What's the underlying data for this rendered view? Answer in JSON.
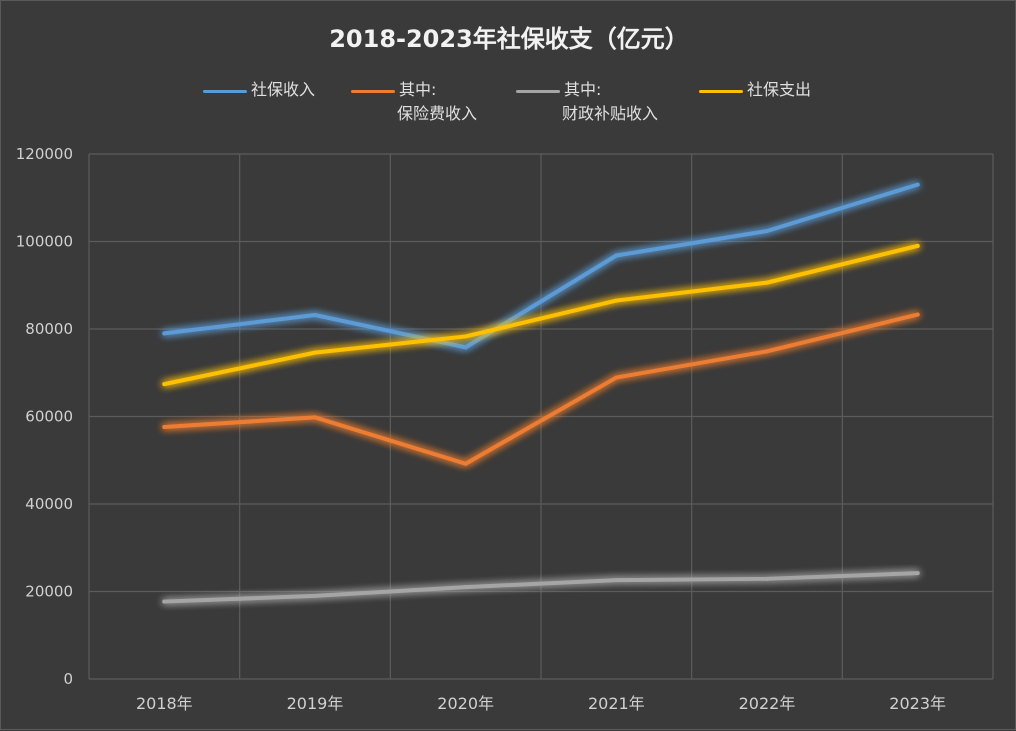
{
  "chart_data": {
    "type": "line",
    "title": "2018-2023年社保收支（亿元）",
    "categories": [
      "2018年",
      "2019年",
      "2020年",
      "2021年",
      "2022年",
      "2023年"
    ],
    "ylim": [
      0,
      120000
    ],
    "yticks": [
      "0",
      "20000",
      "40000",
      "60000",
      "80000",
      "100000",
      "120000"
    ],
    "grid": true,
    "legend_position": "top",
    "series": [
      {
        "name": "社保收入",
        "name_lines": [
          "社保收入"
        ],
        "color": "#5b9bd5",
        "values": [
          79000,
          83200,
          75800,
          96800,
          102400,
          113000
        ]
      },
      {
        "name": "其中:保险费收入",
        "name_lines": [
          "其中:",
          "保险费收入"
        ],
        "color": "#ed7d31",
        "values": [
          57600,
          59800,
          49200,
          68900,
          74900,
          83300
        ]
      },
      {
        "name": "其中:财政补贴收入",
        "name_lines": [
          "其中:",
          "财政补贴收入"
        ],
        "color": "#a5a5a5",
        "values": [
          17700,
          19000,
          21000,
          22600,
          22900,
          24200
        ]
      },
      {
        "name": "社保支出",
        "name_lines": [
          "社保支出"
        ],
        "color": "#ffc000",
        "values": [
          67400,
          74600,
          78300,
          86500,
          90600,
          99000
        ]
      }
    ]
  }
}
